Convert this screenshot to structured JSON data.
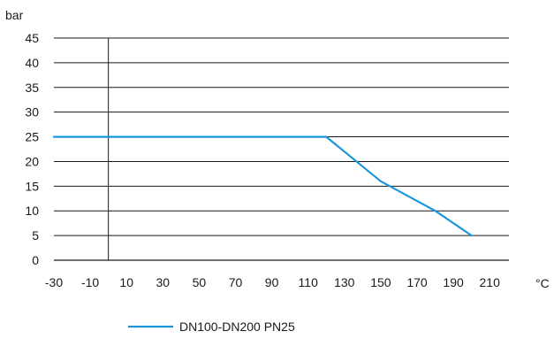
{
  "chart_data": {
    "type": "line",
    "ylabel": "bar",
    "xlabel": "°C",
    "ylim": [
      0,
      45
    ],
    "xlim": [
      -30,
      230
    ],
    "yticks": [
      0,
      5,
      10,
      15,
      20,
      25,
      30,
      35,
      40,
      45
    ],
    "xticks": [
      -30,
      -10,
      10,
      30,
      50,
      70,
      90,
      110,
      130,
      150,
      170,
      190,
      210
    ],
    "grid": "horizontal",
    "legend_position": "bottom",
    "series": [
      {
        "name": "DN100-DN200 PN25",
        "color": "#1a96dc",
        "points": [
          {
            "x": -30,
            "y": 25
          },
          {
            "x": 120,
            "y": 25
          },
          {
            "x": 150,
            "y": 16
          },
          {
            "x": 180,
            "y": 10
          },
          {
            "x": 200,
            "y": 5
          }
        ]
      }
    ]
  }
}
